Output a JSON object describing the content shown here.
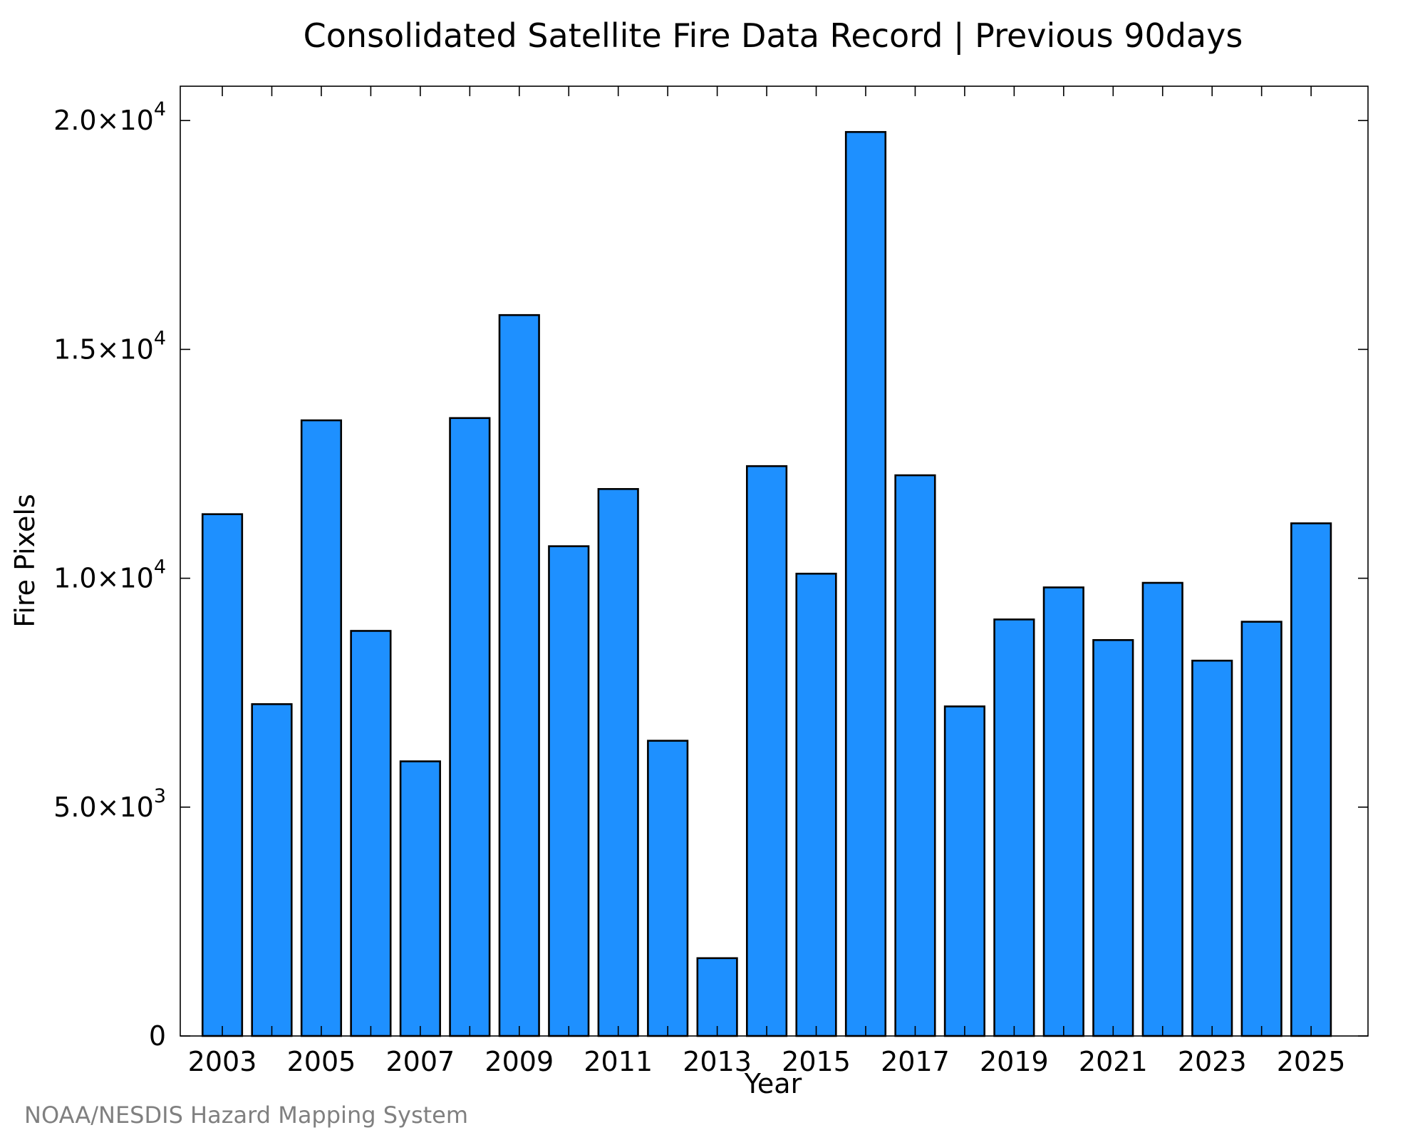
{
  "chart_data": {
    "type": "bar",
    "title": "Consolidated Satellite Fire Data Record | Previous 90days",
    "xlabel": "Year",
    "ylabel": "Fire Pixels",
    "categories": [
      "2003",
      "2004",
      "2005",
      "2006",
      "2007",
      "2008",
      "2009",
      "2010",
      "2011",
      "2012",
      "2013",
      "2014",
      "2015",
      "2016",
      "2017",
      "2018",
      "2019",
      "2020",
      "2021",
      "2022",
      "2023",
      "2024",
      "2025"
    ],
    "values": [
      11400,
      7250,
      13450,
      8850,
      6000,
      13500,
      15750,
      10700,
      11950,
      6450,
      1700,
      12450,
      10100,
      19750,
      12250,
      7200,
      9100,
      9800,
      8650,
      9900,
      8200,
      9050,
      11200
    ],
    "x_tick_labels": [
      "2003",
      "2005",
      "2007",
      "2009",
      "2011",
      "2013",
      "2015",
      "2017",
      "2019",
      "2021",
      "2023",
      "2025"
    ],
    "y_ticks": [
      {
        "value": 0,
        "mantissa": "0",
        "exponent": ""
      },
      {
        "value": 5000,
        "mantissa": "5.0×10",
        "exponent": "3"
      },
      {
        "value": 10000,
        "mantissa": "1.0×10",
        "exponent": "4"
      },
      {
        "value": 15000,
        "mantissa": "1.5×10",
        "exponent": "4"
      },
      {
        "value": 20000,
        "mantissa": "2.0×10",
        "exponent": "4"
      }
    ],
    "ylim": [
      0,
      20750
    ],
    "xlim": [
      2002.15,
      2026.15
    ],
    "bar_color": "#1e90ff",
    "edge_color": "#000000",
    "grid": false,
    "legend": "none"
  },
  "credit": "NOAA/NESDIS Hazard Mapping System"
}
